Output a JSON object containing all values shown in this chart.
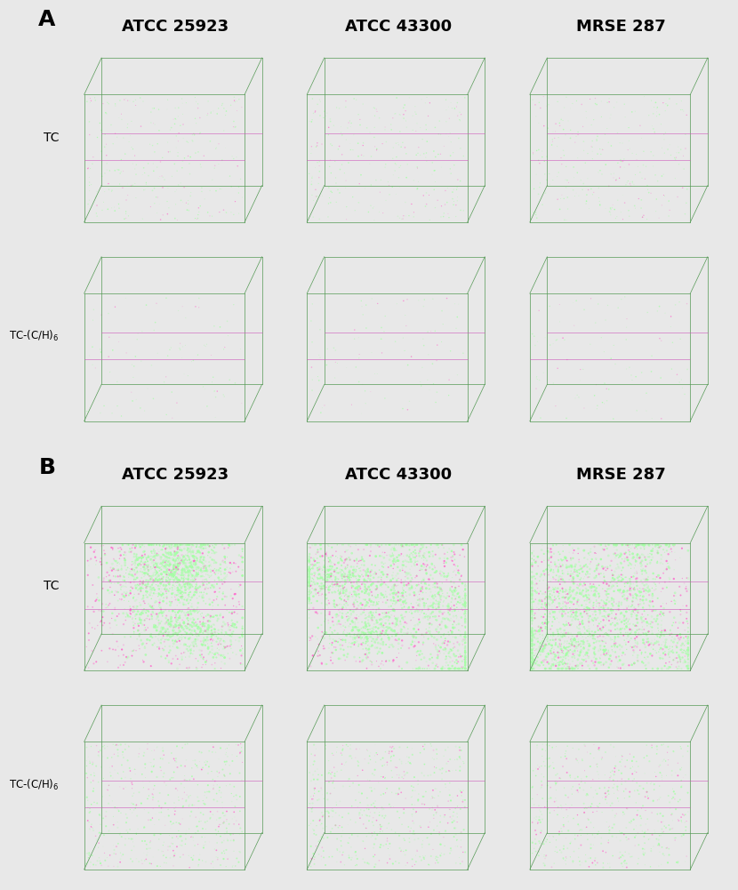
{
  "bg_color": "#e8e8e8",
  "panel_A_label": "A",
  "panel_B_label": "B",
  "col_labels": [
    "ATCC 25923",
    "ATCC 43300",
    "MRSE 287"
  ],
  "row_labels_A": [
    "TC",
    "TC-(C/H)₆"
  ],
  "row_labels_B": [
    "TC",
    "TC-(C/H)₆"
  ],
  "col_label_fontsize": 13,
  "panel_letter_fontsize": 18,
  "fig_width": 8.07,
  "fig_height": 10.0
}
